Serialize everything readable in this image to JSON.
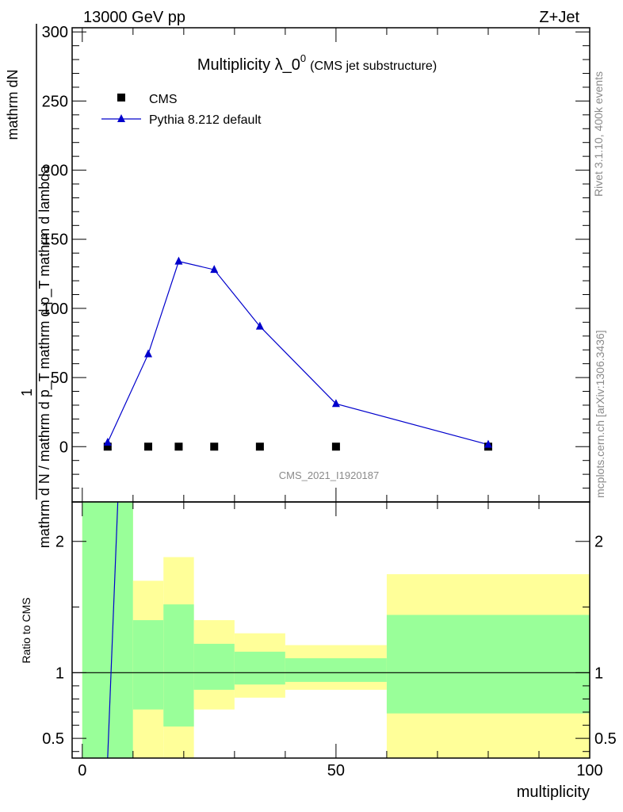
{
  "header": {
    "energy_label": "13000 GeV pp",
    "process_label": "Z+Jet"
  },
  "side_notes": {
    "rivet": "Rivet 3.1.10,  400k events",
    "mcplots": "mcplots.cern.ch [arXiv:1306.3436]"
  },
  "colors": {
    "mc_line": "#0000cc",
    "band_inner": "#99ff99",
    "band_outer": "#ffff99",
    "data_marker": "#000000",
    "watermark": "#8a8a8a"
  },
  "chart_data": [
    {
      "type": "scatter",
      "title_main": "Multiplicity λ_0",
      "title_sup": "0",
      "title_note": "(CMS jet substructure)",
      "watermark": "CMS_2021_I1920187",
      "ylabel_numerator": "mathrm dN",
      "ylabel_prefix": "1",
      "ylabel_denominator": "mathrm d N / mathrm d p_T mathrm d p_T mathrm d lambda",
      "ylabel_full": "1/(mathrm d N / mathrm d p_T mathrm d p_T mathrm d lambda) mathrm dN",
      "xlim": [
        -2,
        100
      ],
      "ylim": [
        -40,
        303
      ],
      "yticks": [
        0,
        50,
        100,
        150,
        200,
        250,
        300
      ],
      "legend": {
        "position": "top-left",
        "entries": [
          "CMS",
          "Pythia 8.212 default"
        ]
      },
      "series": [
        {
          "name": "CMS",
          "marker": "square",
          "x": [
            5,
            13,
            19,
            26,
            35,
            50,
            80
          ],
          "y": [
            0,
            0,
            0,
            0,
            0,
            0,
            0
          ]
        },
        {
          "name": "Pythia 8.212 default",
          "marker": "triangle",
          "x": [
            5,
            13,
            19,
            26,
            35,
            50,
            80
          ],
          "y": [
            3,
            67,
            134,
            128,
            87,
            31,
            1.5
          ]
        }
      ]
    },
    {
      "type": "area",
      "ylabel": "Ratio to CMS",
      "xlabel": "multiplicity",
      "xlim": [
        -2,
        100
      ],
      "ylim": [
        0.35,
        2.3
      ],
      "xticks": [
        0,
        50,
        100
      ],
      "yticks": [
        0.5,
        1,
        2
      ],
      "reference_line": 1,
      "bands": [
        {
          "x0": 0,
          "x1": 10,
          "outer": [
            0.3,
            2.4
          ],
          "inner": [
            0.3,
            2.4
          ]
        },
        {
          "x0": 10,
          "x1": 16,
          "outer": [
            0.3,
            1.7
          ],
          "inner": [
            0.72,
            1.4
          ]
        },
        {
          "x0": 16,
          "x1": 22,
          "outer": [
            0.3,
            1.88
          ],
          "inner": [
            0.59,
            1.52
          ]
        },
        {
          "x0": 22,
          "x1": 30,
          "outer": [
            0.72,
            1.4
          ],
          "inner": [
            0.87,
            1.22
          ]
        },
        {
          "x0": 30,
          "x1": 40,
          "outer": [
            0.81,
            1.3
          ],
          "inner": [
            0.91,
            1.16
          ]
        },
        {
          "x0": 40,
          "x1": 60,
          "outer": [
            0.87,
            1.21
          ],
          "inner": [
            0.93,
            1.11
          ]
        },
        {
          "x0": 60,
          "x1": 100,
          "outer": [
            0.3,
            1.75
          ],
          "inner": [
            0.69,
            1.44
          ]
        }
      ],
      "ratio_line": {
        "x": [
          5,
          7
        ],
        "y": [
          0.35,
          2.3
        ]
      }
    }
  ]
}
